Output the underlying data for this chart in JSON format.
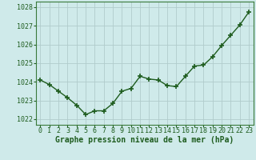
{
  "x": [
    0,
    1,
    2,
    3,
    4,
    5,
    6,
    7,
    8,
    9,
    10,
    11,
    12,
    13,
    14,
    15,
    16,
    17,
    18,
    19,
    20,
    21,
    22,
    23
  ],
  "y": [
    1024.1,
    1023.85,
    1023.5,
    1023.15,
    1022.75,
    1022.25,
    1022.45,
    1022.45,
    1022.85,
    1023.5,
    1023.65,
    1024.3,
    1024.15,
    1024.1,
    1023.8,
    1023.75,
    1024.3,
    1024.85,
    1024.9,
    1025.35,
    1025.95,
    1026.5,
    1027.05,
    1027.75
  ],
  "line_color": "#1e5c1e",
  "marker": "+",
  "markersize": 4,
  "markeredgewidth": 1.2,
  "linewidth": 1.0,
  "bg_color": "#cfeaea",
  "grid_color": "#b0cccc",
  "xlabel": "Graphe pression niveau de la mer (hPa)",
  "xlabel_color": "#1e5c1e",
  "xlabel_fontsize": 7,
  "tick_color": "#1e5c1e",
  "tick_fontsize": 6,
  "ylim_min": 1021.7,
  "ylim_max": 1028.3,
  "xlim_min": -0.5,
  "xlim_max": 23.5,
  "yticks": [
    1022,
    1023,
    1024,
    1025,
    1026,
    1027,
    1028
  ],
  "xticks": [
    0,
    1,
    2,
    3,
    4,
    5,
    6,
    7,
    8,
    9,
    10,
    11,
    12,
    13,
    14,
    15,
    16,
    17,
    18,
    19,
    20,
    21,
    22,
    23
  ],
  "spine_color": "#3a7a3a"
}
